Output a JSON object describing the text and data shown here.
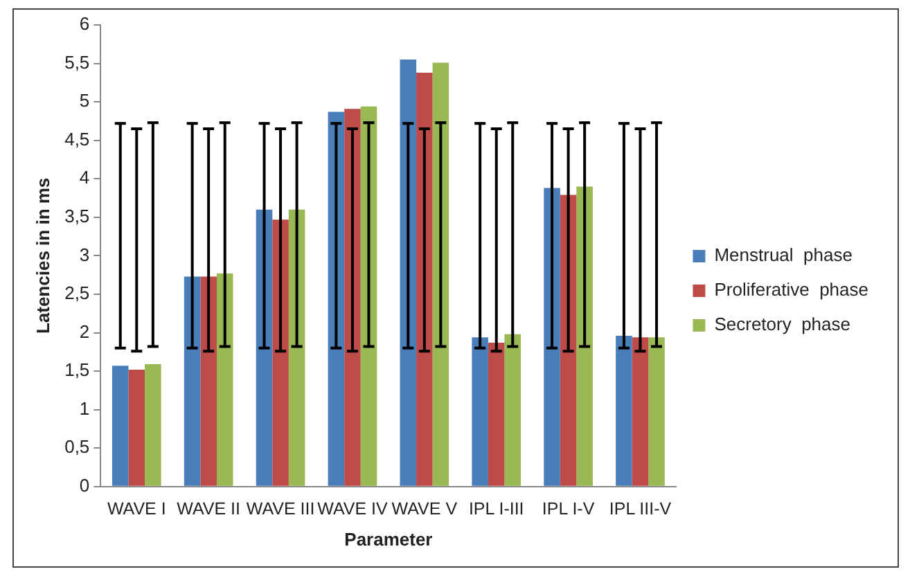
{
  "chart_data": {
    "type": "bar",
    "xlabel": "Parameter",
    "ylabel": "Latencies in in ms",
    "categories": [
      "WAVE I",
      "WAVE II",
      "WAVE III",
      "WAVE IV",
      "WAVE V",
      "IPL I-III",
      "IPL I-V",
      "IPL III-V"
    ],
    "series": [
      {
        "name": "Menstrual  phase",
        "color": "#4a7ebb",
        "values": [
          1.57,
          2.73,
          3.6,
          4.87,
          5.55,
          1.94,
          3.88,
          1.96
        ],
        "errors": [
          [
            1.8,
            4.72
          ],
          [
            1.8,
            4.72
          ],
          [
            1.8,
            4.72
          ],
          [
            1.8,
            4.72
          ],
          [
            1.8,
            4.72
          ],
          [
            1.8,
            4.72
          ],
          [
            1.8,
            4.72
          ],
          [
            1.8,
            4.72
          ]
        ]
      },
      {
        "name": "Proliferative  phase",
        "color": "#be4b48",
        "values": [
          1.52,
          2.73,
          3.47,
          4.91,
          5.38,
          1.87,
          3.79,
          1.94
        ],
        "errors": [
          [
            1.76,
            4.65
          ],
          [
            1.76,
            4.65
          ],
          [
            1.76,
            4.65
          ],
          [
            1.76,
            4.65
          ],
          [
            1.76,
            4.65
          ],
          [
            1.76,
            4.65
          ],
          [
            1.76,
            4.65
          ],
          [
            1.76,
            4.65
          ]
        ]
      },
      {
        "name": "Secretory  phase",
        "color": "#98b954",
        "values": [
          1.59,
          2.77,
          3.6,
          4.94,
          5.51,
          1.98,
          3.9,
          1.94
        ],
        "errors": [
          [
            1.82,
            4.73
          ],
          [
            1.82,
            4.73
          ],
          [
            1.82,
            4.73
          ],
          [
            1.82,
            4.73
          ],
          [
            1.82,
            4.73
          ],
          [
            1.82,
            4.73
          ],
          [
            1.82,
            4.73
          ],
          [
            1.82,
            4.73
          ]
        ]
      }
    ],
    "ylim": [
      0,
      6
    ],
    "yticks": [
      0,
      {
        "value": 0.5,
        "label": "0,5"
      },
      1,
      {
        "value": 1.5,
        "label": "1,5"
      },
      2,
      {
        "value": 2.5,
        "label": "2,5"
      },
      3,
      {
        "value": 3.5,
        "label": "3,5"
      },
      4,
      {
        "value": 4.5,
        "label": "4,5"
      },
      5,
      {
        "value": 5.5,
        "label": "5,5"
      },
      6
    ],
    "grid": false,
    "legend": "right"
  }
}
